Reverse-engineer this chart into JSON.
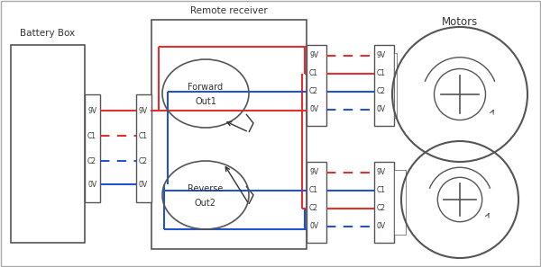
{
  "bg_color": "#ffffff",
  "border_color": "#555555",
  "line_red": "#e03030",
  "line_blue": "#2255cc",
  "text_color": "#333333",
  "battery_labels": [
    "9V",
    "C1",
    "C2",
    "0V"
  ],
  "receiver_title": "Remote receiver",
  "forward_label": [
    "Forward",
    "Out1"
  ],
  "reverse_label": [
    "Reverse",
    "Out2"
  ],
  "motors_title": "Motors",
  "battery_box_title": "Battery Box"
}
